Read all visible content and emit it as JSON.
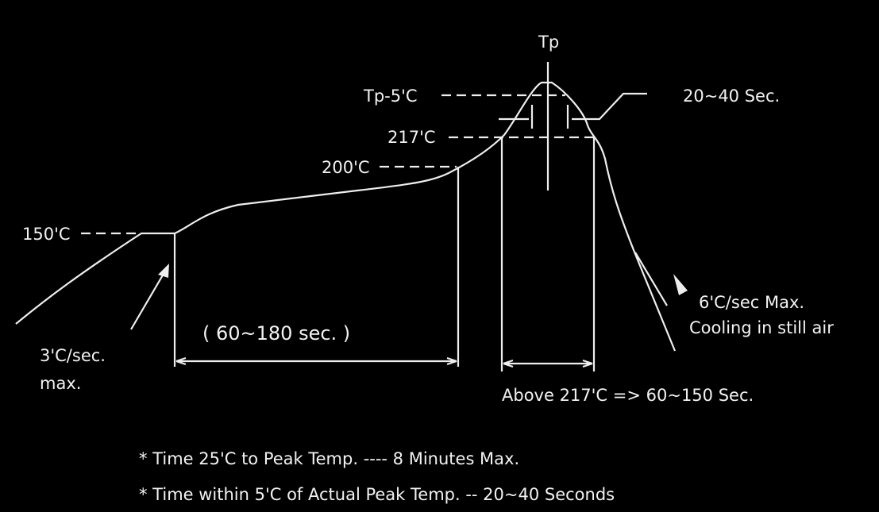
{
  "labels": {
    "tp": "Tp",
    "tp_minus_5": "Tp-5'C",
    "t217": "217'C",
    "t200": "200'C",
    "t150": "150'C",
    "peak_time": "20~40 Sec.",
    "ramp_rate_1": "3'C/sec.",
    "ramp_rate_2": "max.",
    "soak_time": "( 60~180 sec. )",
    "above_217": "Above 217'C => 60~150 Sec.",
    "cooling_1": "6'C/sec Max.",
    "cooling_2": "Cooling in still air"
  },
  "notes": [
    "* Time 25'C to Peak Temp. ---- 8 Minutes Max.",
    "* Time within 5'C of Actual Peak Temp. -- 20~40 Seconds"
  ],
  "colors": {
    "background": "#000000",
    "foreground": "#f2f2f2"
  }
}
